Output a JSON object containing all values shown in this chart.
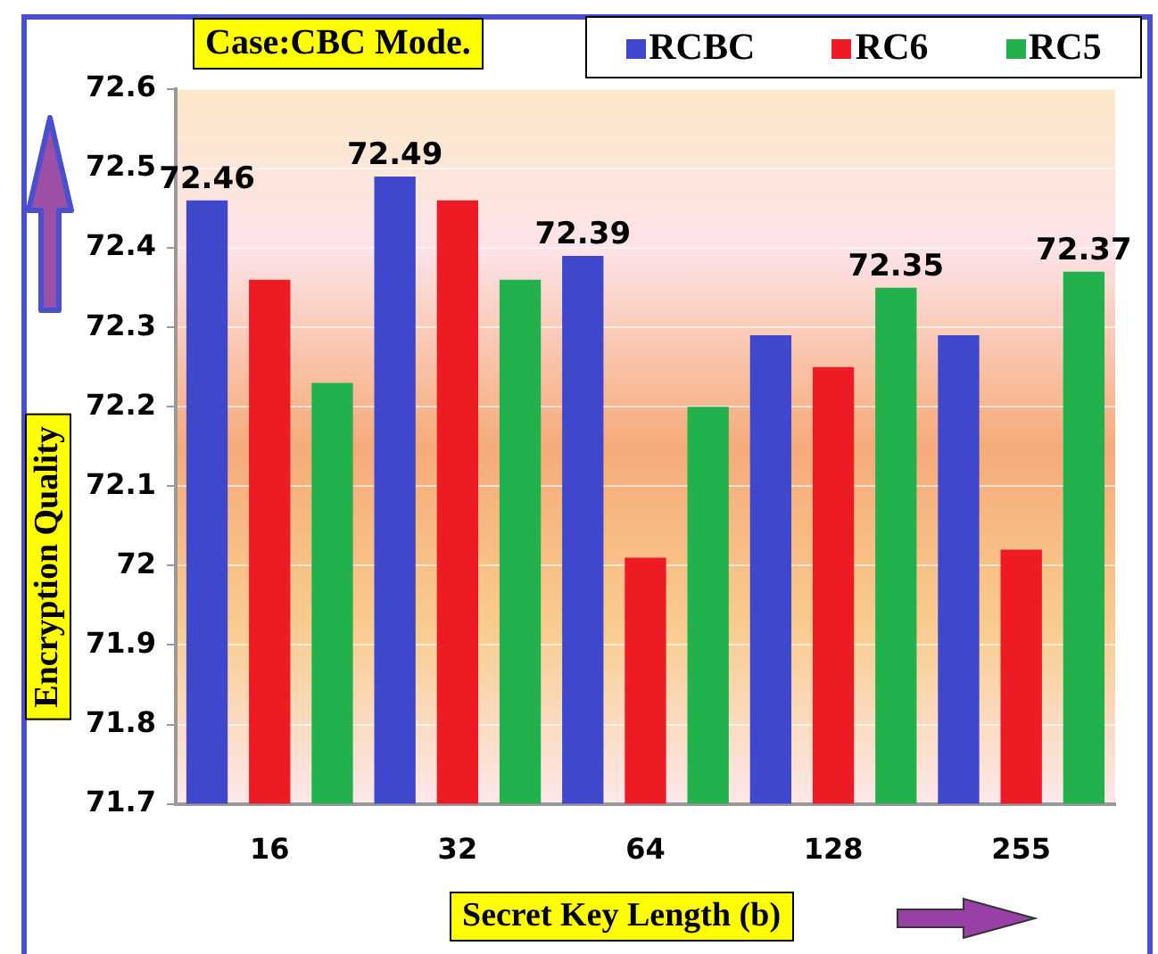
{
  "chart_data": {
    "type": "bar",
    "title": "Case:CBC  Mode.",
    "xlabel": "Secret Key Length (b)",
    "ylabel": "Encryption Quality",
    "categories": [
      "16",
      "32",
      "64",
      "128",
      "255"
    ],
    "series": [
      {
        "name": "RCBC",
        "color": "#3f48cc",
        "values": [
          72.46,
          72.49,
          72.39,
          72.29,
          72.29
        ],
        "value_labels": [
          "72.46",
          "72.49",
          "72.39",
          null,
          null
        ]
      },
      {
        "name": "RC6",
        "color": "#ed1c24",
        "values": [
          72.36,
          72.46,
          72.01,
          72.25,
          72.02
        ]
      },
      {
        "name": "RC5",
        "color": "#22b14c",
        "values": [
          72.23,
          72.36,
          72.2,
          72.35,
          72.37
        ],
        "value_labels": [
          null,
          null,
          null,
          "72.35",
          "72.37"
        ]
      }
    ],
    "ylim": [
      71.7,
      72.6
    ],
    "yticks": [
      71.7,
      71.8,
      71.9,
      72,
      72.1,
      72.2,
      72.3,
      72.4,
      72.5,
      72.6
    ],
    "grid": "y",
    "legend": "top right"
  }
}
